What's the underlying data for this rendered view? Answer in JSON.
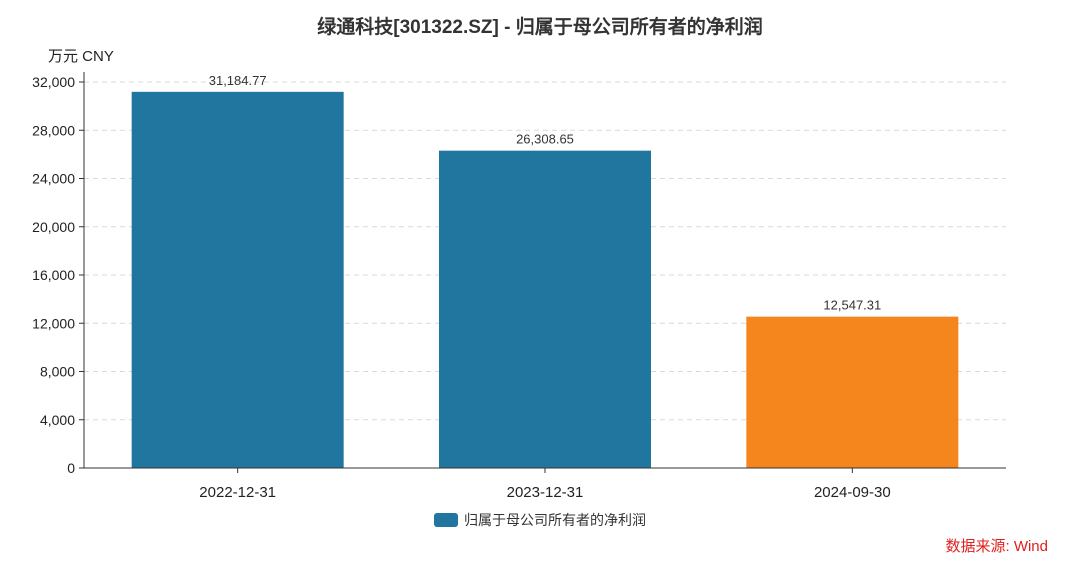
{
  "chart_data": {
    "type": "bar",
    "title": "绿通科技[301322.SZ] - 归属于母公司所有者的净利润",
    "unit_label": "万元  CNY",
    "categories": [
      "2022-12-31",
      "2023-12-31",
      "2024-09-30"
    ],
    "series": [
      {
        "name": "归属于母公司所有者的净利润",
        "values": [
          31184.77,
          26308.65,
          12547.31
        ],
        "value_labels": [
          "31,184.77",
          "26,308.65",
          "12,547.31"
        ]
      }
    ],
    "bar_colors": [
      "#21769f",
      "#21769f",
      "#f5861d"
    ],
    "legend_color": "#21769f",
    "ylim": [
      0,
      32000
    ],
    "yticks": [
      0,
      4000,
      8000,
      12000,
      16000,
      20000,
      24000,
      28000,
      32000
    ],
    "ytick_labels": [
      "0",
      "4,000",
      "8,000",
      "12,000",
      "16,000",
      "20,000",
      "24,000",
      "28,000",
      "32,000"
    ],
    "grid": true,
    "legend_position": "bottom-center",
    "source": "数据来源: Wind"
  }
}
